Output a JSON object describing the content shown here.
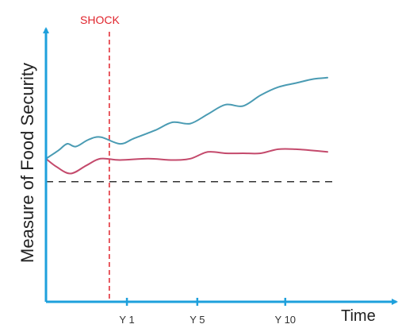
{
  "colors": {
    "axis": "#1ea0dc",
    "series_upper": "#4a9bb3",
    "series_lower": "#c44a6c",
    "shock": "#e0242c",
    "baseline": "#333333"
  },
  "chart_data": {
    "type": "line",
    "ylabel": "Measure of Food Security",
    "xlabel": "Time",
    "x_ticks": [
      {
        "x": 1,
        "label": "Y 1"
      },
      {
        "x": 5,
        "label": "Y 5"
      },
      {
        "x": 10,
        "label": "Y 10"
      }
    ],
    "xlim": [
      -3.6,
      13.3
    ],
    "ylim": [
      0,
      10
    ],
    "shock": {
      "label": "SHOCK",
      "x": 0
    },
    "baseline": {
      "y": 4.45,
      "style": "dashed"
    },
    "series": [
      {
        "color": "#4a9bb3",
        "points": [
          [
            -3.6,
            5.3
          ],
          [
            -2.9,
            5.6
          ],
          [
            -2.4,
            5.85
          ],
          [
            -1.9,
            5.75
          ],
          [
            -1.2,
            6.0
          ],
          [
            -0.5,
            6.1
          ],
          [
            0.6,
            5.85
          ],
          [
            1.4,
            6.05
          ],
          [
            2.6,
            6.35
          ],
          [
            3.6,
            6.65
          ],
          [
            4.6,
            6.6
          ],
          [
            5.6,
            6.95
          ],
          [
            6.6,
            7.3
          ],
          [
            7.6,
            7.25
          ],
          [
            8.6,
            7.65
          ],
          [
            9.6,
            7.95
          ],
          [
            10.6,
            8.1
          ],
          [
            11.6,
            8.25
          ],
          [
            12.4,
            8.3
          ]
        ]
      },
      {
        "color": "#c44a6c",
        "points": [
          [
            -3.6,
            5.3
          ],
          [
            -3.0,
            5.0
          ],
          [
            -2.2,
            4.75
          ],
          [
            -1.3,
            5.05
          ],
          [
            -0.5,
            5.3
          ],
          [
            0.6,
            5.25
          ],
          [
            2.2,
            5.3
          ],
          [
            3.6,
            5.25
          ],
          [
            4.6,
            5.3
          ],
          [
            5.6,
            5.55
          ],
          [
            6.6,
            5.5
          ],
          [
            7.6,
            5.5
          ],
          [
            8.6,
            5.5
          ],
          [
            9.6,
            5.65
          ],
          [
            10.6,
            5.65
          ],
          [
            11.6,
            5.6
          ],
          [
            12.4,
            5.55
          ]
        ]
      }
    ]
  }
}
